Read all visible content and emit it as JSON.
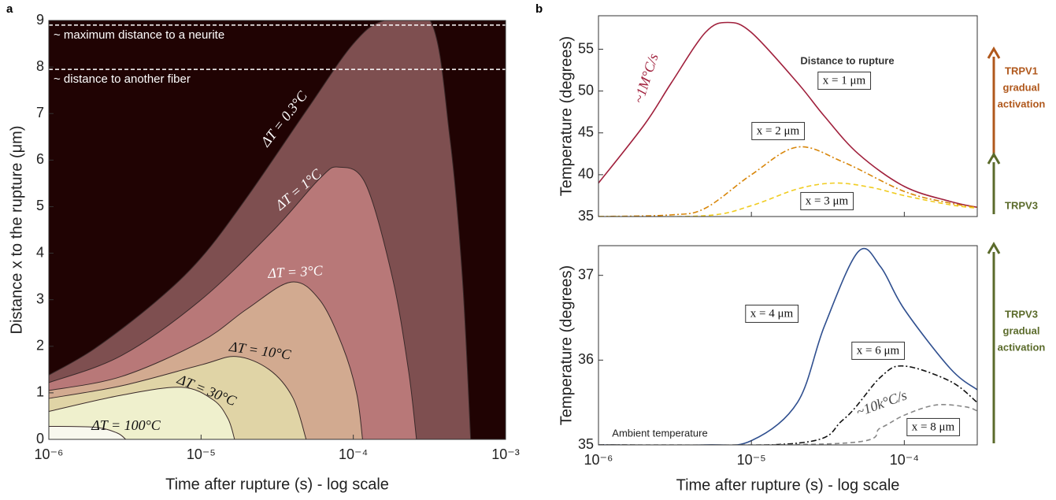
{
  "chart_data": [
    {
      "type": "contour",
      "panel": "a",
      "xlabel": "Time after rupture (s) - log scale",
      "ylabel": "Distance x to the rupture (μm)",
      "xscale": "log",
      "xlim": [
        1e-06,
        0.001
      ],
      "ylim": [
        0,
        9
      ],
      "xticks": [
        {
          "value": 1e-06,
          "label": "10⁻⁶"
        },
        {
          "value": 1e-05,
          "label": "10⁻⁵"
        },
        {
          "value": 0.0001,
          "label": "10⁻⁴"
        },
        {
          "value": 0.001,
          "label": "10⁻³"
        }
      ],
      "yticks": [
        0,
        1,
        2,
        3,
        4,
        5,
        6,
        7,
        8,
        9
      ],
      "background": "#200303",
      "reference_lines": [
        {
          "value": 8.9,
          "label": "~ maximum distance to a neurite"
        },
        {
          "value": 7.95,
          "label": "~ distance to another fiber"
        }
      ],
      "series": [
        {
          "name": "ΔT = 0.3°C",
          "color": "#7e4f50",
          "x": [
            1e-06,
            2e-06,
            5e-06,
            1e-05,
            2e-05,
            5e-05,
            0.0001,
            0.00016,
            0.00032,
            0.00043,
            0.00052,
            0.00059
          ],
          "values": [
            1.38,
            1.95,
            2.95,
            3.9,
            5.2,
            7.1,
            8.5,
            9,
            9,
            6.5,
            3.5,
            0
          ]
        },
        {
          "name": "ΔT = 1°C",
          "color": "#b87878",
          "x": [
            1e-06,
            3e-06,
            1e-05,
            3e-05,
            6e-05,
            8e-05,
            0.00012,
            0.00018,
            0.00023,
            0.00026
          ],
          "values": [
            1.22,
            1.8,
            3.0,
            4.5,
            5.6,
            5.85,
            5.5,
            3.5,
            1.5,
            0
          ]
        },
        {
          "name": "ΔT = 3°C",
          "color": "#d2aa90",
          "x": [
            1e-06,
            3e-06,
            1e-05,
            2e-05,
            3.9e-05,
            6e-05,
            8.5e-05,
            0.000105,
            0.000115
          ],
          "values": [
            1.05,
            1.35,
            2.1,
            2.8,
            3.38,
            3.0,
            2.0,
            1.0,
            0
          ]
        },
        {
          "name": "ΔT = 10°C",
          "color": "#e0d4a6",
          "x": [
            1e-06,
            3e-06,
            1e-05,
            1.7e-05,
            2.8e-05,
            4e-05,
            4.9e-05
          ],
          "values": [
            0.88,
            1.15,
            1.6,
            1.78,
            1.5,
            0.9,
            0
          ]
        },
        {
          "name": "ΔT = 30°C",
          "color": "#eff0cd",
          "x": [
            1e-06,
            3e-06,
            7.4e-06,
            1.2e-05,
            1.5e-05,
            1.66e-05
          ],
          "values": [
            0.6,
            0.95,
            1.12,
            0.85,
            0.45,
            0
          ]
        },
        {
          "name": "ΔT = 100°C",
          "color": "#f8f8ee",
          "x": [
            1e-06,
            2e-06,
            2.8e-06,
            3.2e-06
          ],
          "values": [
            0.28,
            0.26,
            0.14,
            0
          ]
        }
      ]
    },
    {
      "type": "line",
      "panel": "b",
      "ylabel": "Temperature (degrees)",
      "xscale": "log",
      "xlim": [
        1e-06,
        0.0003
      ],
      "ylim": [
        35,
        59
      ],
      "xticks": [
        1e-06,
        1e-05,
        0.0001
      ],
      "yticks": [
        35,
        40,
        45,
        50,
        55
      ],
      "annotations": [
        "~1M°C/s",
        "Distance to rupture"
      ],
      "arrows": [
        {
          "label": [
            "TRPV1",
            "gradual",
            "activation"
          ],
          "color": "#b0581c"
        },
        {
          "label": [
            "TRPV3"
          ],
          "color": "#5b6b2b"
        }
      ],
      "series": [
        {
          "name": "x = 1 μm",
          "color": "#a0203c",
          "dash": "solid",
          "x": [
            1e-06,
            2e-06,
            3e-06,
            5e-06,
            7e-06,
            1e-05,
            2e-05,
            3e-05,
            5e-05,
            0.0001,
            0.0002,
            0.0003
          ],
          "values": [
            39,
            46,
            51,
            57,
            58.2,
            57,
            51,
            47,
            42.5,
            38.6,
            36.8,
            36.1
          ]
        },
        {
          "name": "x = 2 μm",
          "color": "#d8860a",
          "dash": "dashdot",
          "x": [
            1e-06,
            3e-06,
            5e-06,
            1e-05,
            2e-05,
            4e-05,
            0.0001,
            0.0002,
            0.0003
          ],
          "values": [
            35,
            35.2,
            36,
            40,
            43.3,
            41.5,
            38,
            36.6,
            36.1
          ]
        },
        {
          "name": "x = 3 μm",
          "color": "#f0cc20",
          "dash": "dashed",
          "x": [
            1e-06,
            5e-06,
            1e-05,
            2e-05,
            3.5e-05,
            6e-05,
            0.0001,
            0.0002,
            0.0003
          ],
          "values": [
            35,
            35.1,
            36.3,
            38.3,
            39,
            38.5,
            37.5,
            36.4,
            36
          ]
        }
      ]
    },
    {
      "type": "line",
      "xlabel": "Time after rupture (s) - log scale",
      "ylabel": "Temperature (degrees)",
      "xscale": "log",
      "xlim": [
        1e-06,
        0.0003
      ],
      "ylim": [
        35,
        37.35
      ],
      "xticks": [
        {
          "value": 1e-06,
          "label": "10⁻⁶"
        },
        {
          "value": 1e-05,
          "label": "10⁻⁵"
        },
        {
          "value": 0.0001,
          "label": "10⁻⁴"
        }
      ],
      "yticks": [
        35,
        36,
        37
      ],
      "annotations": [
        "Ambient temperature",
        "~10k°C/s"
      ],
      "arrows": [
        {
          "label": [
            "TRPV3",
            "gradual",
            "activation"
          ],
          "color": "#5b6b2b"
        }
      ],
      "series": [
        {
          "name": "x = 4 μm",
          "color": "#2f4f8f",
          "dash": "solid",
          "x": [
            1e-06,
            5e-06,
            1e-05,
            2e-05,
            3e-05,
            5e-05,
            7e-05,
            0.0001,
            0.0002,
            0.0003
          ],
          "values": [
            35,
            35,
            35.05,
            35.5,
            36.4,
            37.28,
            37.1,
            36.6,
            35.9,
            35.65
          ]
        },
        {
          "name": "x = 6 μm",
          "color": "#111111",
          "dash": "dashdot",
          "x": [
            1e-06,
            2e-05,
            4e-05,
            7e-05,
            0.0001,
            0.0002,
            0.0003
          ],
          "values": [
            35,
            35.02,
            35.3,
            35.8,
            35.93,
            35.75,
            35.5
          ]
        },
        {
          "name": "x = 8 μm",
          "color": "#888888",
          "dash": "dashed",
          "x": [
            1e-06,
            4e-05,
            7e-05,
            0.0001,
            0.00016,
            0.00025,
            0.0003
          ],
          "values": [
            35,
            35.02,
            35.2,
            35.35,
            35.47,
            35.45,
            35.4
          ]
        }
      ]
    }
  ]
}
